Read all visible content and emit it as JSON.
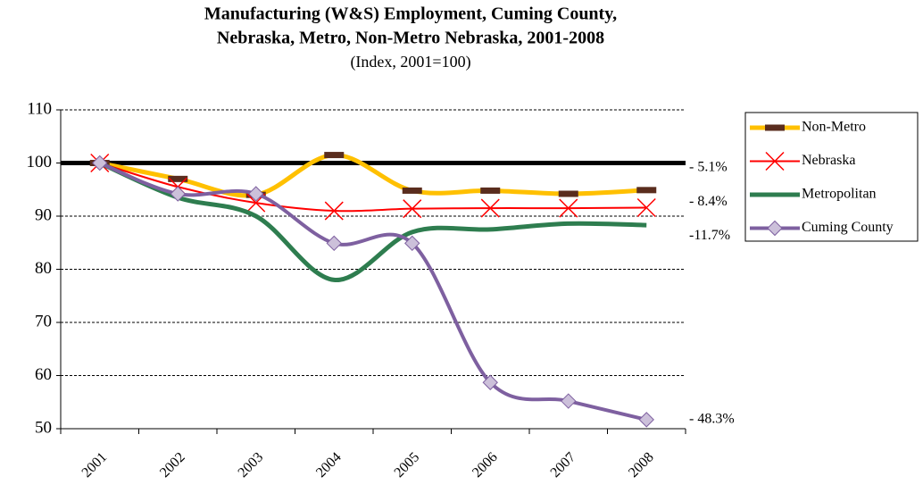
{
  "chart_data": {
    "type": "line",
    "title": [
      "Manufacturing (W&S) Employment, Cuming County,",
      "Nebraska, Metro, Non-Metro Nebraska,  2001-2008"
    ],
    "subtitle": "(Index, 2001=100)",
    "categories": [
      "2001",
      "2002",
      "2003",
      "2004",
      "2005",
      "2006",
      "2007",
      "2008"
    ],
    "series": [
      {
        "name": "Non-Metro",
        "color": "#ffc000",
        "marker_color": "#5a2d1e",
        "marker": "dash",
        "values": [
          100,
          97,
          94,
          101.5,
          94.8,
          94.8,
          94.2,
          94.9
        ]
      },
      {
        "name": "Nebraska",
        "color": "#ff0000",
        "marker_color": "#ff0000",
        "marker": "x",
        "values": [
          100,
          95.5,
          92.5,
          91,
          91.4,
          91.5,
          91.5,
          91.6
        ]
      },
      {
        "name": "Metropolitan",
        "color": "#2e7d4f",
        "marker": "none",
        "values": [
          100,
          93.5,
          90,
          78,
          87,
          87.5,
          88.6,
          88.3
        ]
      },
      {
        "name": "Cuming County",
        "color": "#7e60a0",
        "marker_color": "#ccc0da",
        "marker": "diamond",
        "values": [
          100,
          94.2,
          94.2,
          84.9,
          84.9,
          58.7,
          55.2,
          51.7
        ]
      }
    ],
    "annotations": [
      "- 5.1%",
      "- 8.4%",
      "-11.7%",
      "- 48.3%"
    ],
    "reference_line": 100,
    "ylim": [
      50,
      110
    ],
    "yticks": [
      50,
      60,
      70,
      80,
      90,
      100,
      110
    ],
    "grid": true,
    "legend": "right"
  }
}
